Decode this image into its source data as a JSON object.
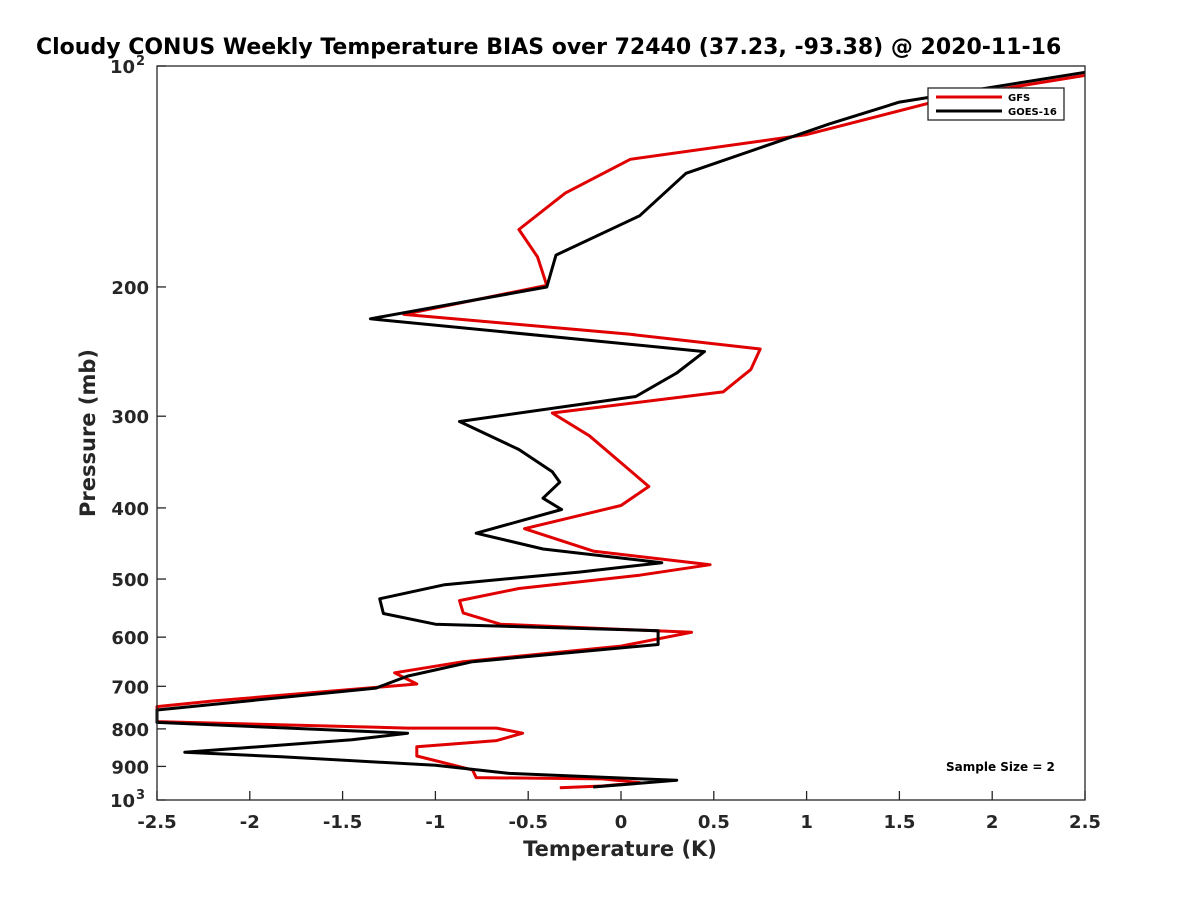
{
  "chart_data": {
    "type": "line",
    "title": "Cloudy CONUS Weekly Temperature BIAS over 72440 (37.23, -93.38) @ 2020-11-16",
    "xlabel": "Temperature (K)",
    "ylabel": "Pressure (mb)",
    "xlim": [
      -2.5,
      2.5
    ],
    "ylim": [
      100,
      1000
    ],
    "y_scale": "log",
    "y_reversed": true,
    "x_ticks": [
      "-2.5",
      "-2",
      "-1.5",
      "-1",
      "-0.5",
      "0",
      "0.5",
      "1",
      "1.5",
      "2",
      "2.5"
    ],
    "y_ticks": [
      {
        "value": 100,
        "base": "10",
        "exp": "2"
      },
      {
        "value": 200,
        "label": "200"
      },
      {
        "value": 300,
        "label": "300"
      },
      {
        "value": 400,
        "label": "400"
      },
      {
        "value": 500,
        "label": "500"
      },
      {
        "value": 600,
        "label": "600"
      },
      {
        "value": 700,
        "label": "700"
      },
      {
        "value": 800,
        "label": "800"
      },
      {
        "value": 900,
        "label": "900"
      },
      {
        "value": 1000,
        "base": "10",
        "exp": "3"
      }
    ],
    "grid": false,
    "legend_position": "top-right",
    "annotation": "Sample Size = 2",
    "series": [
      {
        "name": "GFS",
        "color": "#e00000",
        "points": [
          [
            2.5,
            103
          ],
          [
            1.8,
            110
          ],
          [
            1.0,
            124
          ],
          [
            0.05,
            134
          ],
          [
            -0.3,
            149
          ],
          [
            -0.55,
            167
          ],
          [
            -0.45,
            182
          ],
          [
            -0.4,
            199
          ],
          [
            -1.17,
            218
          ],
          [
            0.05,
            232
          ],
          [
            0.75,
            243
          ],
          [
            0.7,
            259
          ],
          [
            0.55,
            278
          ],
          [
            -0.37,
            297
          ],
          [
            -0.17,
            319
          ],
          [
            0.15,
            374
          ],
          [
            0.0,
            397
          ],
          [
            -0.52,
            427
          ],
          [
            -0.15,
            458
          ],
          [
            0.48,
            478
          ],
          [
            0.1,
            494
          ],
          [
            -0.55,
            515
          ],
          [
            -0.87,
            535
          ],
          [
            -0.85,
            556
          ],
          [
            -0.65,
            576
          ],
          [
            0.38,
            591
          ],
          [
            0.0,
            617
          ],
          [
            -0.85,
            648
          ],
          [
            -1.22,
            671
          ],
          [
            -1.1,
            695
          ],
          [
            -2.2,
            733
          ],
          [
            -2.5,
            746
          ],
          [
            -2.5,
            782
          ],
          [
            -1.15,
            798
          ],
          [
            -0.67,
            798
          ],
          [
            -0.53,
            811
          ],
          [
            -0.67,
            830
          ],
          [
            -1.1,
            846
          ],
          [
            -1.1,
            871
          ],
          [
            -0.8,
            910
          ],
          [
            -0.78,
            932
          ],
          [
            -0.1,
            936
          ],
          [
            0.1,
            947
          ],
          [
            -0.1,
            957
          ],
          [
            -0.33,
            962
          ]
        ]
      },
      {
        "name": "GOES-16",
        "color": "#000000",
        "points": [
          [
            2.5,
            102
          ],
          [
            1.5,
            112
          ],
          [
            1.12,
            120
          ],
          [
            0.35,
            140
          ],
          [
            0.1,
            160
          ],
          [
            -0.35,
            181
          ],
          [
            -0.4,
            200
          ],
          [
            -1.35,
            221
          ],
          [
            0.45,
            245
          ],
          [
            0.3,
            262
          ],
          [
            0.08,
            282
          ],
          [
            -0.87,
            305
          ],
          [
            -0.55,
            333
          ],
          [
            -0.37,
            357
          ],
          [
            -0.33,
            369
          ],
          [
            -0.42,
            388
          ],
          [
            -0.32,
            402
          ],
          [
            -0.78,
            433
          ],
          [
            -0.42,
            455
          ],
          [
            0.22,
            475
          ],
          [
            -0.22,
            489
          ],
          [
            -0.95,
            509
          ],
          [
            -1.3,
            532
          ],
          [
            -1.28,
            557
          ],
          [
            -1.0,
            576
          ],
          [
            0.2,
            588
          ],
          [
            0.2,
            614
          ],
          [
            -0.8,
            648
          ],
          [
            -1.15,
            678
          ],
          [
            -1.25,
            693
          ],
          [
            -1.32,
            704
          ],
          [
            -2.5,
            754
          ],
          [
            -2.5,
            784
          ],
          [
            -1.15,
            811
          ],
          [
            -1.45,
            828
          ],
          [
            -2.35,
            861
          ],
          [
            -1.83,
            873
          ],
          [
            -1.0,
            897
          ],
          [
            -0.6,
            920
          ],
          [
            0.3,
            940
          ],
          [
            -0.15,
            960
          ]
        ]
      }
    ]
  }
}
